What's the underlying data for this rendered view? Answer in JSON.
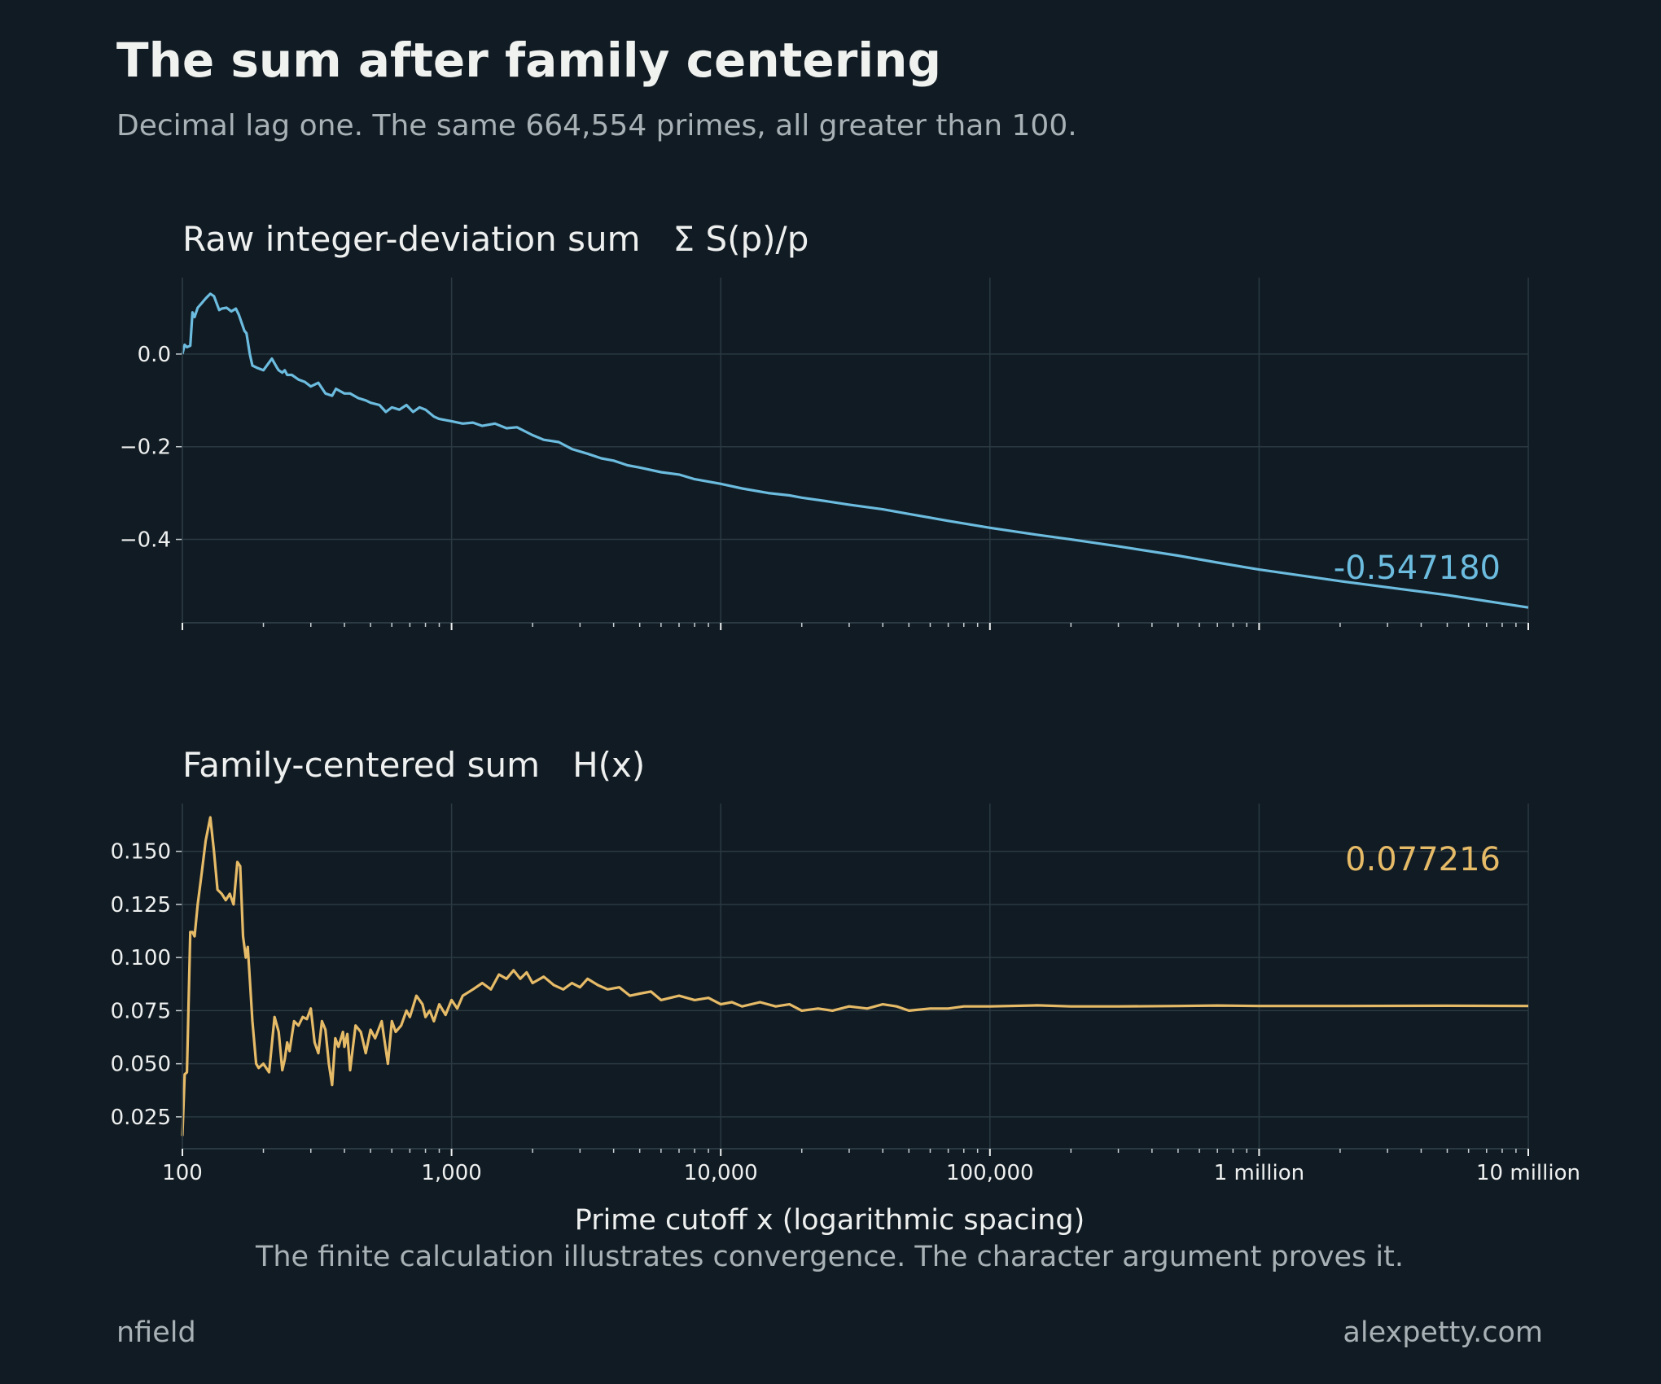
{
  "header": {
    "title": "The sum after family centering",
    "subtitle": "Decimal lag one. The same 664,554 primes, all greater than 100."
  },
  "footer": {
    "left": "nfield",
    "right": "alexpetty.com"
  },
  "colors": {
    "background": "#111b23",
    "grid": "#2a3942",
    "raw_series": "#6cbcdf",
    "centered_series": "#e6bb68",
    "text": "#eef0ef",
    "muted_text": "#a8b1b5"
  },
  "chart_data": [
    {
      "type": "line",
      "title": "Raw integer-deviation sum   Σ S(p)/p",
      "xscale": "log",
      "xlim": [
        100,
        10000000
      ],
      "ylim": [
        -0.58,
        0.165
      ],
      "yticks": [
        0.0,
        -0.2,
        -0.4
      ],
      "yticklabels": [
        "0.0",
        "−0.2",
        "−0.4"
      ],
      "grid": true,
      "end_value_label": "-0.547180",
      "series": [
        {
          "x": [
            100,
            102,
            104,
            107,
            109,
            111,
            114,
            118,
            122,
            127,
            131,
            137,
            140,
            146,
            152,
            158,
            162,
            170,
            173,
            178,
            182,
            190,
            200,
            215,
            225,
            228,
            235,
            240,
            245,
            255,
            270,
            285,
            300,
            320,
            340,
            360,
            372,
            385,
            400,
            420,
            450,
            480,
            500,
            540,
            570,
            600,
            640,
            680,
            720,
            760,
            800,
            860,
            900,
            1000,
            1100,
            1200,
            1300,
            1450,
            1600,
            1750,
            2000,
            2200,
            2500,
            2800,
            3200,
            3600,
            4000,
            4500,
            5000,
            6000,
            7000,
            8000,
            10000,
            12000,
            15000,
            18000,
            20000,
            25000,
            30000,
            40000,
            50000,
            70000,
            100000,
            150000,
            200000,
            300000,
            500000,
            700000,
            1000000,
            2000000,
            5000000,
            10000000
          ],
          "y": [
            0.0,
            0.02,
            0.015,
            0.018,
            0.09,
            0.08,
            0.1,
            0.11,
            0.12,
            0.13,
            0.125,
            0.095,
            0.098,
            0.1,
            0.092,
            0.098,
            0.085,
            0.05,
            0.045,
            0.0,
            -0.025,
            -0.03,
            -0.035,
            -0.01,
            -0.03,
            -0.035,
            -0.04,
            -0.035,
            -0.045,
            -0.045,
            -0.055,
            -0.06,
            -0.07,
            -0.062,
            -0.085,
            -0.09,
            -0.075,
            -0.08,
            -0.085,
            -0.085,
            -0.095,
            -0.1,
            -0.105,
            -0.11,
            -0.125,
            -0.115,
            -0.12,
            -0.11,
            -0.125,
            -0.115,
            -0.12,
            -0.135,
            -0.14,
            -0.145,
            -0.15,
            -0.148,
            -0.155,
            -0.15,
            -0.16,
            -0.158,
            -0.175,
            -0.185,
            -0.19,
            -0.205,
            -0.215,
            -0.225,
            -0.23,
            -0.24,
            -0.245,
            -0.255,
            -0.26,
            -0.27,
            -0.28,
            -0.29,
            -0.3,
            -0.305,
            -0.31,
            -0.318,
            -0.325,
            -0.335,
            -0.345,
            -0.36,
            -0.375,
            -0.39,
            -0.4,
            -0.415,
            -0.435,
            -0.45,
            -0.465,
            -0.49,
            -0.52,
            -0.547
          ]
        }
      ]
    },
    {
      "type": "line",
      "title": "Family-centered sum   H(x)",
      "xscale": "log",
      "xlim": [
        100,
        10000000
      ],
      "ylim": [
        0.01,
        0.1725
      ],
      "yticks": [
        0.15,
        0.125,
        0.1,
        0.075,
        0.05,
        0.025
      ],
      "yticklabels": [
        "0.150",
        "0.125",
        "0.100",
        "0.075",
        "0.050",
        "0.025"
      ],
      "xlabel": "Prime cutoff x (logarithmic spacing)",
      "xticks": [
        100,
        1000,
        10000,
        100000,
        1000000,
        10000000
      ],
      "xticklabels": [
        "100",
        "1,000",
        "10,000",
        "100,000",
        "1 million",
        "10 million"
      ],
      "caption": "The finite calculation illustrates convergence. The character argument proves it.",
      "grid": true,
      "end_value_label": "0.077216",
      "series": [
        {
          "x": [
            100,
            102,
            104,
            107,
            109,
            111,
            114,
            118,
            122,
            127,
            131,
            135,
            140,
            145,
            150,
            155,
            160,
            164,
            168,
            172,
            175,
            178,
            182,
            188,
            192,
            200,
            210,
            220,
            228,
            235,
            240,
            245,
            250,
            260,
            270,
            280,
            290,
            300,
            310,
            320,
            330,
            340,
            350,
            360,
            370,
            380,
            395,
            400,
            410,
            420,
            440,
            460,
            470,
            480,
            500,
            520,
            550,
            580,
            600,
            620,
            650,
            680,
            700,
            740,
            780,
            800,
            830,
            860,
            900,
            950,
            1000,
            1050,
            1100,
            1200,
            1300,
            1400,
            1500,
            1600,
            1700,
            1800,
            1900,
            2000,
            2200,
            2400,
            2600,
            2800,
            3000,
            3200,
            3500,
            3800,
            4200,
            4600,
            5000,
            5500,
            6000,
            7000,
            8000,
            9000,
            10000,
            11000,
            12000,
            14000,
            16000,
            18000,
            20000,
            23000,
            26000,
            30000,
            35000,
            40000,
            45000,
            50000,
            60000,
            70000,
            80000,
            100000,
            150000,
            200000,
            300000,
            500000,
            700000,
            1000000,
            2000000,
            5000000,
            10000000
          ],
          "y": [
            0.016,
            0.045,
            0.046,
            0.112,
            0.112,
            0.11,
            0.125,
            0.14,
            0.155,
            0.166,
            0.15,
            0.132,
            0.13,
            0.127,
            0.13,
            0.125,
            0.145,
            0.143,
            0.11,
            0.1,
            0.105,
            0.09,
            0.07,
            0.05,
            0.048,
            0.05,
            0.046,
            0.072,
            0.065,
            0.047,
            0.052,
            0.06,
            0.056,
            0.07,
            0.068,
            0.072,
            0.071,
            0.076,
            0.06,
            0.055,
            0.07,
            0.066,
            0.05,
            0.04,
            0.062,
            0.058,
            0.065,
            0.058,
            0.064,
            0.047,
            0.068,
            0.065,
            0.06,
            0.055,
            0.066,
            0.062,
            0.07,
            0.05,
            0.07,
            0.065,
            0.068,
            0.075,
            0.072,
            0.082,
            0.078,
            0.072,
            0.075,
            0.07,
            0.078,
            0.073,
            0.08,
            0.076,
            0.082,
            0.085,
            0.088,
            0.085,
            0.092,
            0.09,
            0.094,
            0.09,
            0.093,
            0.088,
            0.091,
            0.087,
            0.085,
            0.088,
            0.086,
            0.09,
            0.087,
            0.085,
            0.086,
            0.082,
            0.083,
            0.084,
            0.08,
            0.082,
            0.08,
            0.081,
            0.078,
            0.079,
            0.077,
            0.079,
            0.077,
            0.078,
            0.075,
            0.076,
            0.075,
            0.077,
            0.076,
            0.078,
            0.077,
            0.075,
            0.076,
            0.076,
            0.077,
            0.077,
            0.0775,
            0.077,
            0.077,
            0.0772,
            0.0774,
            0.0772,
            0.0772,
            0.0773,
            0.0772
          ]
        }
      ]
    }
  ]
}
